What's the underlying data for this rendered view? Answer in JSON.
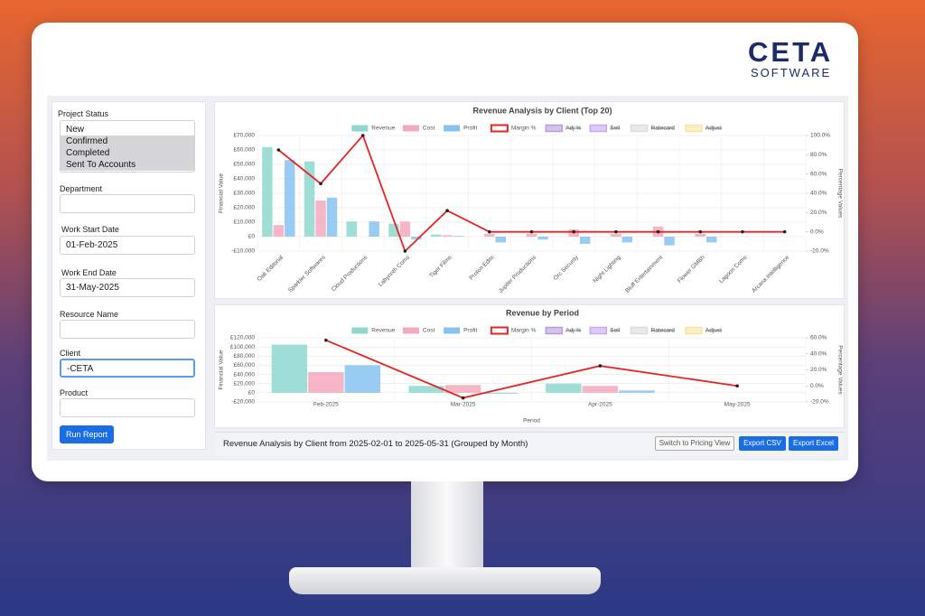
{
  "logo": {
    "name": "CETA",
    "tagline": "SOFTWARE"
  },
  "filters": {
    "project_status": {
      "label": "Project Status",
      "options": [
        "New",
        "Confirmed",
        "Completed",
        "Sent To Accounts"
      ],
      "selected": [
        false,
        true,
        true,
        true
      ]
    },
    "department": {
      "label": "Department",
      "value": ""
    },
    "work_start_date": {
      "label": "Work Start Date",
      "value": "01-Feb-2025"
    },
    "work_end_date": {
      "label": "Work End Date",
      "value": "31-May-2025"
    },
    "resource_name": {
      "label": "Resource Name",
      "value": ""
    },
    "client": {
      "label": "Client",
      "value": "-CETA"
    },
    "product": {
      "label": "Product",
      "value": ""
    },
    "run_button": "Run Report"
  },
  "footer": {
    "summary": "Revenue Analysis by Client from 2025-02-01 to 2025-05-31 (Grouped by Month)",
    "buttons": [
      "Switch to Pricing View",
      "Export CSV",
      "Export Excel"
    ]
  },
  "chart_data": [
    {
      "type": "bar",
      "title": "Revenue Analysis by Client (Top 20)",
      "y_label": "Financial Value",
      "y2_label": "Percentage Values",
      "legend": "top",
      "grid": true,
      "rotate_x_labels": true,
      "categories": [
        "Oak Editorial",
        "Sparkler Softwares",
        "Cloud Productions",
        "Labyrinth Coms",
        "Tiger Films",
        "Proton Edits",
        "Jupiter Productions",
        "Orc Security",
        "Night Lighting",
        "Bluff Entertainment",
        "Flower GMBh",
        "Lagoon Coms",
        "Arcana Intelligence"
      ],
      "series": [
        {
          "name": "Revenue",
          "color": "#8ed8cf",
          "values": [
            62000,
            52000,
            10500,
            9000,
            1500,
            0,
            0,
            0,
            0,
            0,
            0,
            0,
            0
          ]
        },
        {
          "name": "Cost",
          "color": "#f6a9bd",
          "values": [
            8000,
            25000,
            0,
            10500,
            1000,
            2000,
            2000,
            5000,
            2000,
            7000,
            2000,
            0,
            0
          ]
        },
        {
          "name": "Profit",
          "color": "#86c3f0",
          "values": [
            53000,
            27000,
            10500,
            -2000,
            500,
            -4000,
            -2000,
            -5000,
            -4000,
            -6000,
            -4000,
            0,
            0
          ]
        },
        {
          "name": "Margin %",
          "color": "#e82424",
          "line": true,
          "axis": "y2",
          "values": [
            85,
            50,
            100,
            -20,
            22,
            0,
            0,
            0,
            0,
            0,
            0,
            0,
            0
          ]
        },
        {
          "name": "Adj %",
          "color": "#b79de0",
          "hidden": true
        },
        {
          "name": "Sell",
          "color": "#c9a9f2",
          "hidden": true
        },
        {
          "name": "Ratecard",
          "color": "#dcdcdc",
          "hidden": true
        },
        {
          "name": "Adjust",
          "color": "#fde3a2",
          "hidden": true
        }
      ],
      "ylim": [
        -10000,
        70000
      ],
      "yticks": [
        {
          "value": -10000,
          "label": "-£10,000"
        },
        {
          "value": 0,
          "label": "£0"
        },
        {
          "value": 10000,
          "label": "£10,000"
        },
        {
          "value": 20000,
          "label": "£20,000"
        },
        {
          "value": 30000,
          "label": "£30,000"
        },
        {
          "value": 40000,
          "label": "£40,000"
        },
        {
          "value": 50000,
          "label": "£50,000"
        },
        {
          "value": 60000,
          "label": "£60,000"
        },
        {
          "value": 70000,
          "label": "£70,000"
        }
      ],
      "y2lim": [
        -20,
        100
      ],
      "y2ticks": [
        {
          "value": -20,
          "label": "-20.0%"
        },
        {
          "value": 0,
          "label": "0.0%"
        },
        {
          "value": 20,
          "label": "20.0%"
        },
        {
          "value": 40,
          "label": "40.0%"
        },
        {
          "value": 60,
          "label": "60.0%"
        },
        {
          "value": 80,
          "label": "80.0%"
        },
        {
          "value": 100,
          "label": "100.0%"
        }
      ]
    },
    {
      "type": "bar",
      "title": "Revenue by Period",
      "y_label": "Financial Value",
      "y2_label": "Percentage Values",
      "x_label": "Period",
      "legend": "top",
      "grid": true,
      "categories": [
        "Feb-2025",
        "Mar-2025",
        "Apr-2025",
        "May-2025"
      ],
      "series": [
        {
          "name": "Revenue",
          "color": "#8ed8cf",
          "values": [
            105000,
            15000,
            20000,
            0
          ]
        },
        {
          "name": "Cost",
          "color": "#f6a9bd",
          "values": [
            45000,
            17000,
            15000,
            0
          ]
        },
        {
          "name": "Profit",
          "color": "#86c3f0",
          "values": [
            60000,
            -2000,
            5000,
            0
          ]
        },
        {
          "name": "Margin %",
          "color": "#e82424",
          "line": true,
          "axis": "y2",
          "values": [
            57,
            -15,
            25,
            0
          ]
        },
        {
          "name": "Adj %",
          "color": "#b79de0",
          "hidden": true
        },
        {
          "name": "Sell",
          "color": "#c9a9f2",
          "hidden": true
        },
        {
          "name": "Ratecard",
          "color": "#dcdcdc",
          "hidden": true
        },
        {
          "name": "Adjust",
          "color": "#fde3a2",
          "hidden": true
        }
      ],
      "ylim": [
        -20000,
        120000
      ],
      "yticks": [
        {
          "value": -20000,
          "label": "-£20,000"
        },
        {
          "value": 0,
          "label": "£0"
        },
        {
          "value": 20000,
          "label": "£20,000"
        },
        {
          "value": 40000,
          "label": "£40,000"
        },
        {
          "value": 60000,
          "label": "£60,000"
        },
        {
          "value": 80000,
          "label": "£80,000"
        },
        {
          "value": 100000,
          "label": "£100,000"
        },
        {
          "value": 120000,
          "label": "£120,000"
        }
      ],
      "y2lim": [
        -20,
        60
      ],
      "y2ticks": [
        {
          "value": -20,
          "label": "-20.0%"
        },
        {
          "value": 0,
          "label": "0.0%"
        },
        {
          "value": 20,
          "label": "20.0%"
        },
        {
          "value": 40,
          "label": "40.0%"
        },
        {
          "value": 60,
          "label": "60.0%"
        }
      ]
    }
  ]
}
